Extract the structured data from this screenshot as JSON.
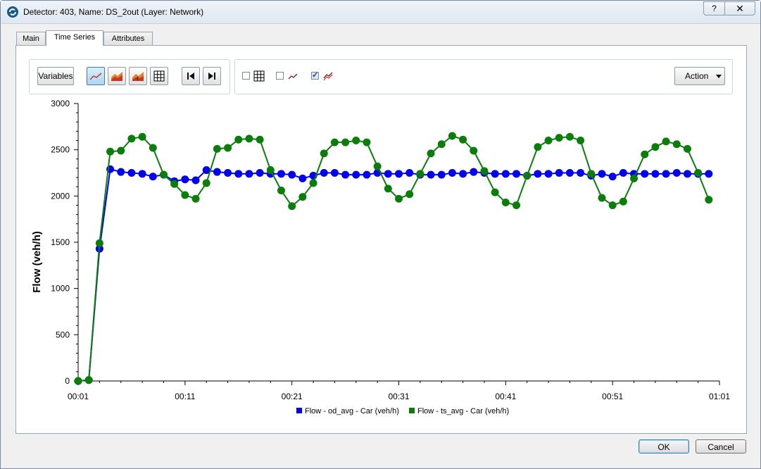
{
  "window": {
    "title": "Detector: 403, Name: DS_2out (Layer: Network)",
    "help_label": "?",
    "close_label": "✕"
  },
  "tabs": [
    {
      "label": "Main"
    },
    {
      "label": "Time Series",
      "active": true
    },
    {
      "label": "Attributes"
    }
  ],
  "toolbar": {
    "variables_label": "Variables",
    "action_label": "Action",
    "buttons": [
      "line-chart-icon",
      "area-chart-icon",
      "stacked-area-chart-icon",
      "table-grid-icon",
      "first-icon",
      "last-icon"
    ],
    "checkboxes": [
      {
        "icon": "grid-icon",
        "checked": false
      },
      {
        "icon": "single-series-icon",
        "checked": false
      },
      {
        "icon": "multi-series-icon",
        "checked": true
      }
    ]
  },
  "dialog": {
    "ok_label": "OK",
    "cancel_label": "Cancel"
  },
  "chart_data": {
    "type": "line",
    "title": "",
    "xlabel": "",
    "ylabel": "Flow (veh/h)",
    "ylim": [
      0,
      3000
    ],
    "yticks": [
      "0",
      "500",
      "1000",
      "1500",
      "2000",
      "2500",
      "3000"
    ],
    "xlim": [
      1,
      61
    ],
    "xticks": [
      {
        "minute": 1,
        "label": "00:01"
      },
      {
        "minute": 11,
        "label": "00:11"
      },
      {
        "minute": 21,
        "label": "00:21"
      },
      {
        "minute": 31,
        "label": "00:31"
      },
      {
        "minute": 41,
        "label": "00:41"
      },
      {
        "minute": 51,
        "label": "00:51"
      },
      {
        "minute": 61,
        "label": "01:01"
      }
    ],
    "legend_position": "bottom",
    "grid": false,
    "x": [
      1,
      2,
      3,
      4,
      5,
      6,
      7,
      8,
      9,
      10,
      11,
      12,
      13,
      14,
      15,
      16,
      17,
      18,
      19,
      20,
      21,
      22,
      23,
      24,
      25,
      26,
      27,
      28,
      29,
      30,
      31,
      32,
      33,
      34,
      35,
      36,
      37,
      38,
      39,
      40,
      41,
      42,
      43,
      44,
      45,
      46,
      47,
      48,
      49,
      50,
      51,
      52,
      53,
      54,
      55,
      56,
      57,
      58,
      59,
      60
    ],
    "series": [
      {
        "name": "Flow - od_avg - Car (veh/h)",
        "color": "#0000ee",
        "values": [
          0,
          10,
          1430,
          2290,
          2260,
          2250,
          2240,
          2210,
          2230,
          2160,
          2180,
          2170,
          2280,
          2260,
          2250,
          2240,
          2240,
          2250,
          2240,
          2240,
          2230,
          2190,
          2220,
          2250,
          2250,
          2230,
          2230,
          2230,
          2250,
          2240,
          2240,
          2250,
          2230,
          2230,
          2230,
          2250,
          2240,
          2260,
          2250,
          2240,
          2240,
          2240,
          2220,
          2240,
          2240,
          2250,
          2250,
          2250,
          2220,
          2240,
          2210,
          2250,
          2240,
          2240,
          2240,
          2240,
          2250,
          2240,
          2240,
          2240
        ]
      },
      {
        "name": "Flow - ts_avg - Car (veh/h)",
        "color": "#0a7d0a",
        "values": [
          0,
          10,
          1490,
          2480,
          2490,
          2620,
          2640,
          2520,
          2230,
          2130,
          2010,
          1970,
          2140,
          2510,
          2520,
          2610,
          2620,
          2610,
          2280,
          2060,
          1890,
          1990,
          2140,
          2460,
          2580,
          2580,
          2600,
          2580,
          2320,
          2080,
          1970,
          2020,
          2240,
          2460,
          2560,
          2650,
          2610,
          2490,
          2270,
          2040,
          1930,
          1900,
          2220,
          2530,
          2600,
          2630,
          2640,
          2600,
          2240,
          1980,
          1900,
          1940,
          2190,
          2450,
          2530,
          2590,
          2560,
          2510,
          2250,
          1960
        ]
      }
    ]
  }
}
